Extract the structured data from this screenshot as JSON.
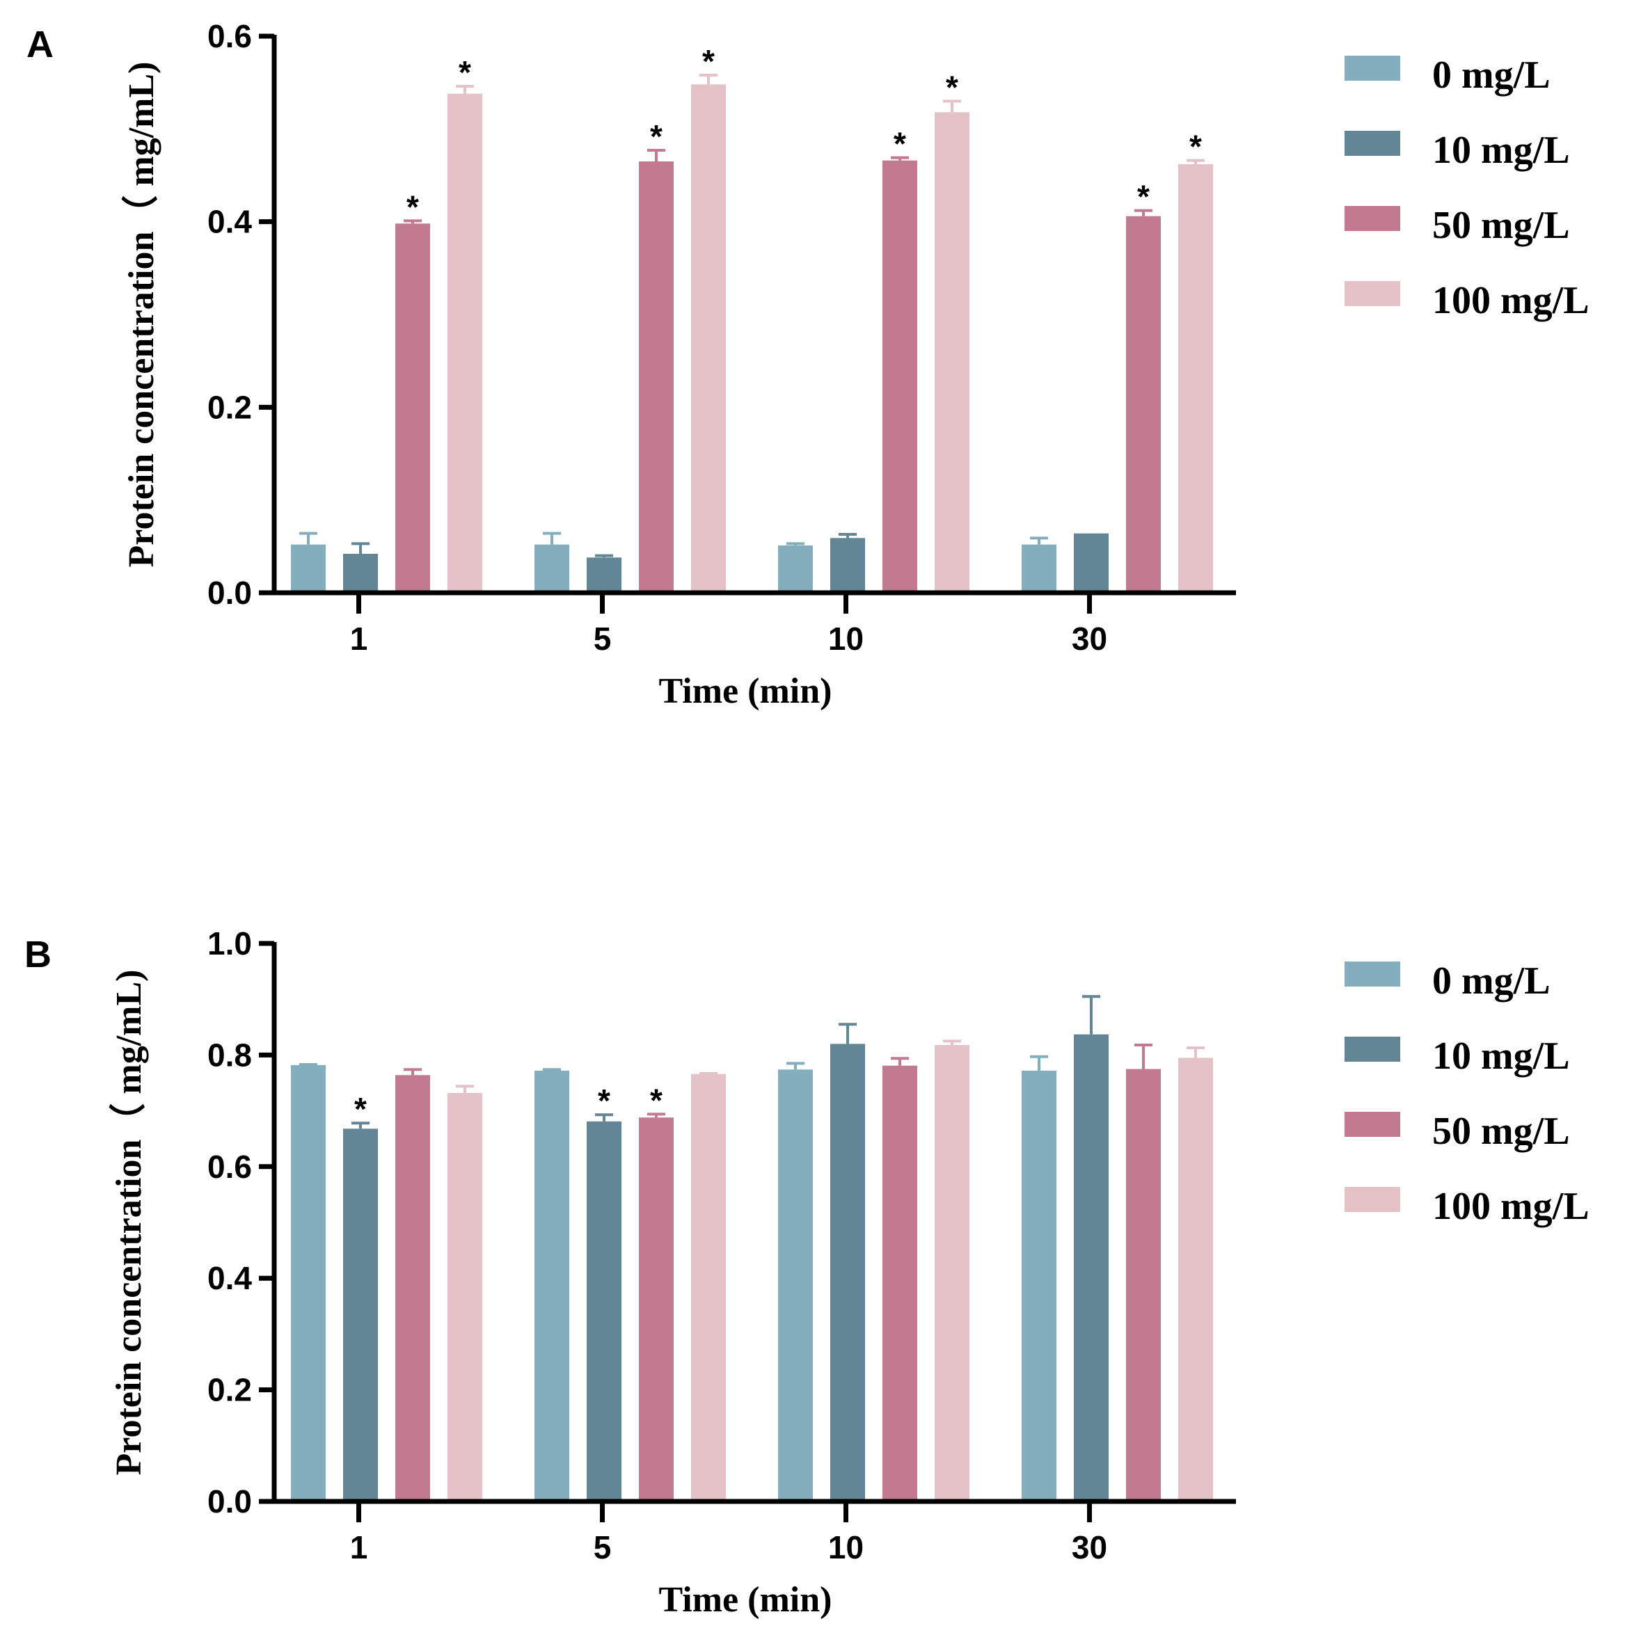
{
  "chart_data": [
    {
      "type": "bar",
      "panel": "A",
      "xlabel": "Time (min)",
      "ylabel": "Protein concentration（ mg/mL)",
      "ylim": [
        0,
        0.6
      ],
      "yticks": [
        "0.0",
        "0.2",
        "0.4",
        "0.6"
      ],
      "categories": [
        "1",
        "5",
        "10",
        "30"
      ],
      "series": [
        {
          "name": "0 mg/L",
          "color": "#82aebd",
          "values": [
            0.052,
            0.052,
            0.051,
            0.052
          ],
          "errors": [
            0.012,
            0.012,
            0.002,
            0.007
          ],
          "significant": [
            false,
            false,
            false,
            false
          ]
        },
        {
          "name": "10 mg/L",
          "color": "#628696",
          "values": [
            0.042,
            0.038,
            0.059,
            0.064
          ],
          "errors": [
            0.011,
            0.002,
            0.004,
            0.0
          ],
          "significant": [
            false,
            false,
            false,
            false
          ]
        },
        {
          "name": "50 mg/L",
          "color": "#c27a91",
          "values": [
            0.398,
            0.465,
            0.466,
            0.406
          ],
          "errors": [
            0.003,
            0.012,
            0.003,
            0.006
          ],
          "significant": [
            true,
            true,
            true,
            true
          ]
        },
        {
          "name": "100 mg/L",
          "color": "#e4c2c8",
          "values": [
            0.538,
            0.548,
            0.518,
            0.462
          ],
          "errors": [
            0.008,
            0.01,
            0.012,
            0.004
          ],
          "significant": [
            true,
            true,
            true,
            true
          ]
        }
      ],
      "significance_marker": "*"
    },
    {
      "type": "bar",
      "panel": "B",
      "xlabel": "Time (min)",
      "ylabel": "Protein concentration（ mg/mL)",
      "ylim": [
        0,
        1.0
      ],
      "yticks": [
        "0.0",
        "0.2",
        "0.4",
        "0.6",
        "0.8",
        "1.0"
      ],
      "categories": [
        "1",
        "5",
        "10",
        "30"
      ],
      "series": [
        {
          "name": "0 mg/L",
          "color": "#82aebd",
          "values": [
            0.782,
            0.772,
            0.774,
            0.772
          ],
          "errors": [
            0.001,
            0.002,
            0.011,
            0.025
          ],
          "significant": [
            false,
            false,
            false,
            false
          ]
        },
        {
          "name": "10 mg/L",
          "color": "#628696",
          "values": [
            0.668,
            0.681,
            0.82,
            0.837
          ],
          "errors": [
            0.01,
            0.012,
            0.035,
            0.068
          ],
          "significant": [
            true,
            true,
            false,
            false
          ]
        },
        {
          "name": "50 mg/L",
          "color": "#c27a91",
          "values": [
            0.764,
            0.688,
            0.781,
            0.775
          ],
          "errors": [
            0.01,
            0.006,
            0.013,
            0.043
          ],
          "significant": [
            false,
            true,
            false,
            false
          ]
        },
        {
          "name": "100 mg/L",
          "color": "#e4c2c8",
          "values": [
            0.732,
            0.766,
            0.818,
            0.795
          ],
          "errors": [
            0.012,
            0.001,
            0.007,
            0.018
          ],
          "significant": [
            false,
            false,
            false,
            false
          ]
        }
      ],
      "significance_marker": "*"
    }
  ]
}
